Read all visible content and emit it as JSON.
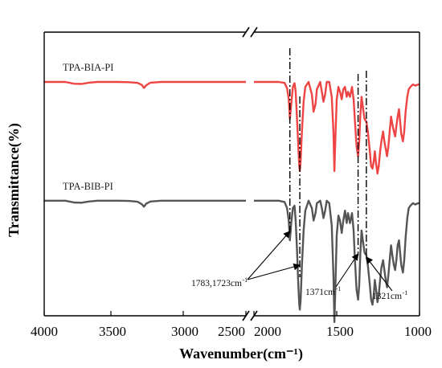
{
  "chart_data": {
    "type": "line",
    "title": "",
    "xlabel": "Wavenumber(cm⁻¹)",
    "ylabel": "Transmittance(%)",
    "x_axis": {
      "reversed": true,
      "broken": true,
      "segments": [
        [
          4000,
          2100
        ],
        [
          2000,
          1000
        ]
      ],
      "tick_labels": [
        "4000",
        "3500",
        "3000",
        "2500",
        "2000",
        "1500",
        "1000"
      ],
      "tick_values": [
        4000,
        3500,
        3000,
        2500,
        2000,
        1500,
        1000
      ]
    },
    "y_axis": {
      "ticks_shown": false
    },
    "grid": false,
    "colors": {
      "TPA-BIA-PI": "#ee4444",
      "TPA-BIB-PI": "#555555"
    },
    "series": [
      {
        "name": "TPA-BIA-PI",
        "label": "TPA-BIA-PI",
        "points": [
          [
            4000,
            100
          ],
          [
            3900,
            100
          ],
          [
            3800,
            100
          ],
          [
            3720,
            99.3
          ],
          [
            3650,
            99.2
          ],
          [
            3580,
            99.7
          ],
          [
            3500,
            100
          ],
          [
            3400,
            100
          ],
          [
            3300,
            100
          ],
          [
            3200,
            99.9
          ],
          [
            3120,
            99.6
          ],
          [
            3080,
            98.8
          ],
          [
            3060,
            97.6
          ],
          [
            3040,
            98.6
          ],
          [
            3000,
            99.7
          ],
          [
            2900,
            100
          ],
          [
            2800,
            100
          ],
          [
            2700,
            100
          ],
          [
            2600,
            100
          ],
          [
            2500,
            100
          ],
          [
            2400,
            100
          ],
          [
            2300,
            100
          ],
          [
            2200,
            100
          ],
          [
            2100,
            100
          ],
          [
            2000,
            100
          ],
          [
            1900,
            100
          ],
          [
            1850,
            100
          ],
          [
            1815,
            99.6
          ],
          [
            1800,
            97.5
          ],
          [
            1790,
            93
          ],
          [
            1783,
            85
          ],
          [
            1775,
            91
          ],
          [
            1765,
            98
          ],
          [
            1755,
            99.5
          ],
          [
            1748,
            96
          ],
          [
            1740,
            85
          ],
          [
            1732,
            74
          ],
          [
            1726,
            66
          ],
          [
            1723,
            64
          ],
          [
            1718,
            68
          ],
          [
            1710,
            80
          ],
          [
            1700,
            92
          ],
          [
            1690,
            98
          ],
          [
            1670,
            100
          ],
          [
            1650,
            95
          ],
          [
            1640,
            88
          ],
          [
            1628,
            91
          ],
          [
            1620,
            97
          ],
          [
            1600,
            100
          ],
          [
            1590,
            96
          ],
          [
            1580,
            92
          ],
          [
            1570,
            95
          ],
          [
            1560,
            100
          ],
          [
            1545,
            100
          ],
          [
            1530,
            94
          ],
          [
            1520,
            80
          ],
          [
            1514,
            64
          ],
          [
            1508,
            78
          ],
          [
            1500,
            93
          ],
          [
            1490,
            98
          ],
          [
            1480,
            96
          ],
          [
            1470,
            93
          ],
          [
            1460,
            97
          ],
          [
            1450,
            98
          ],
          [
            1440,
            94
          ],
          [
            1432,
            96
          ],
          [
            1420,
            94
          ],
          [
            1408,
            98
          ],
          [
            1398,
            93
          ],
          [
            1390,
            84
          ],
          [
            1380,
            74
          ],
          [
            1371,
            70
          ],
          [
            1364,
            76
          ],
          [
            1358,
            86
          ],
          [
            1350,
            94
          ],
          [
            1342,
            90
          ],
          [
            1332,
            85
          ],
          [
            1321,
            84
          ],
          [
            1312,
            80
          ],
          [
            1300,
            72
          ],
          [
            1292,
            66
          ],
          [
            1284,
            65
          ],
          [
            1276,
            68
          ],
          [
            1270,
            72
          ],
          [
            1262,
            67
          ],
          [
            1254,
            63
          ],
          [
            1246,
            66
          ],
          [
            1238,
            72
          ],
          [
            1230,
            76
          ],
          [
            1220,
            80
          ],
          [
            1212,
            76
          ],
          [
            1204,
            73
          ],
          [
            1196,
            70
          ],
          [
            1188,
            74
          ],
          [
            1180,
            80
          ],
          [
            1172,
            86
          ],
          [
            1164,
            83
          ],
          [
            1155,
            80
          ],
          [
            1147,
            78
          ],
          [
            1140,
            82
          ],
          [
            1132,
            86
          ],
          [
            1124,
            89
          ],
          [
            1117,
            84
          ],
          [
            1110,
            79
          ],
          [
            1100,
            76
          ],
          [
            1092,
            80
          ],
          [
            1084,
            88
          ],
          [
            1074,
            94
          ],
          [
            1065,
            97
          ],
          [
            1055,
            98
          ],
          [
            1040,
            99
          ],
          [
            1025,
            98.5
          ],
          [
            1015,
            98.8
          ],
          [
            1008,
            99
          ],
          [
            1000,
            99
          ]
        ]
      },
      {
        "name": "TPA-BIB-PI",
        "label": "TPA-BIB-PI",
        "points": [
          [
            4000,
            52
          ],
          [
            3900,
            52
          ],
          [
            3800,
            52
          ],
          [
            3720,
            51.3
          ],
          [
            3650,
            51.2
          ],
          [
            3580,
            51.7
          ],
          [
            3500,
            52
          ],
          [
            3400,
            52
          ],
          [
            3300,
            52
          ],
          [
            3200,
            51.9
          ],
          [
            3120,
            51.6
          ],
          [
            3080,
            50.6
          ],
          [
            3060,
            49.6
          ],
          [
            3040,
            50.8
          ],
          [
            3000,
            51.7
          ],
          [
            2900,
            52
          ],
          [
            2800,
            52
          ],
          [
            2700,
            52
          ],
          [
            2600,
            52
          ],
          [
            2500,
            52
          ],
          [
            2400,
            52
          ],
          [
            2300,
            52
          ],
          [
            2200,
            52
          ],
          [
            2100,
            52
          ],
          [
            2000,
            52
          ],
          [
            1900,
            52
          ],
          [
            1850,
            52
          ],
          [
            1815,
            51.5
          ],
          [
            1800,
            49
          ],
          [
            1790,
            44
          ],
          [
            1783,
            36
          ],
          [
            1775,
            43
          ],
          [
            1765,
            49
          ],
          [
            1755,
            50
          ],
          [
            1748,
            44
          ],
          [
            1740,
            32
          ],
          [
            1732,
            18
          ],
          [
            1726,
            10
          ],
          [
            1723,
            8
          ],
          [
            1718,
            12
          ],
          [
            1710,
            26
          ],
          [
            1700,
            40
          ],
          [
            1690,
            48
          ],
          [
            1670,
            52
          ],
          [
            1650,
            49
          ],
          [
            1640,
            44
          ],
          [
            1628,
            47
          ],
          [
            1620,
            51
          ],
          [
            1600,
            52
          ],
          [
            1590,
            49
          ],
          [
            1580,
            45
          ],
          [
            1570,
            48
          ],
          [
            1560,
            52
          ],
          [
            1545,
            51
          ],
          [
            1530,
            42
          ],
          [
            1520,
            22
          ],
          [
            1514,
            3
          ],
          [
            1508,
            18
          ],
          [
            1500,
            38
          ],
          [
            1490,
            46
          ],
          [
            1480,
            44
          ],
          [
            1470,
            39
          ],
          [
            1460,
            44
          ],
          [
            1450,
            48
          ],
          [
            1440,
            43
          ],
          [
            1432,
            47
          ],
          [
            1420,
            43
          ],
          [
            1408,
            47
          ],
          [
            1398,
            40
          ],
          [
            1390,
            28
          ],
          [
            1380,
            16
          ],
          [
            1371,
            12
          ],
          [
            1364,
            18
          ],
          [
            1358,
            30
          ],
          [
            1350,
            40
          ],
          [
            1342,
            36
          ],
          [
            1332,
            31
          ],
          [
            1321,
            30
          ],
          [
            1312,
            26
          ],
          [
            1300,
            18
          ],
          [
            1292,
            12
          ],
          [
            1284,
            10
          ],
          [
            1276,
            14
          ],
          [
            1270,
            20
          ],
          [
            1262,
            16
          ],
          [
            1254,
            11
          ],
          [
            1246,
            14
          ],
          [
            1238,
            20
          ],
          [
            1230,
            25
          ],
          [
            1220,
            28
          ],
          [
            1212,
            24
          ],
          [
            1204,
            20
          ],
          [
            1196,
            17
          ],
          [
            1188,
            22
          ],
          [
            1180,
            28
          ],
          [
            1172,
            34
          ],
          [
            1164,
            30
          ],
          [
            1155,
            26
          ],
          [
            1147,
            24
          ],
          [
            1140,
            28
          ],
          [
            1132,
            34
          ],
          [
            1124,
            36
          ],
          [
            1117,
            31
          ],
          [
            1110,
            26
          ],
          [
            1100,
            23
          ],
          [
            1092,
            28
          ],
          [
            1084,
            37
          ],
          [
            1074,
            45
          ],
          [
            1065,
            49
          ],
          [
            1055,
            50
          ],
          [
            1040,
            51
          ],
          [
            1025,
            50.5
          ],
          [
            1015,
            50.8
          ],
          [
            1008,
            51
          ],
          [
            1000,
            51
          ]
        ]
      }
    ],
    "reference_lines": [
      1783,
      1723,
      1371,
      1321
    ],
    "annotations": [
      {
        "text": "1783,1723cm",
        "sup": "-1",
        "targets": [
          1783,
          1723
        ]
      },
      {
        "text": "1371cm",
        "sup": "-1",
        "targets": [
          1371
        ]
      },
      {
        "text": "1321cm",
        "sup": "-1",
        "targets": [
          1321
        ]
      }
    ]
  }
}
